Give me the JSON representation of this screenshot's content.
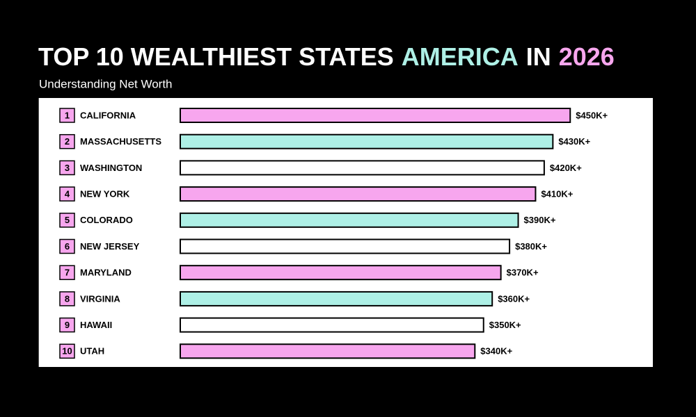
{
  "chart_data": {
    "type": "bar",
    "orientation": "horizontal",
    "title_parts": [
      {
        "text": "TOP 10 WEALTHIEST STATES",
        "color": "#ffffff"
      },
      {
        "text": "AMERICA",
        "color": "#aef0e6"
      },
      {
        "text": "IN",
        "color": "#ffffff"
      },
      {
        "text": "2026",
        "color": "#f7a6ee"
      }
    ],
    "subtitle": "Understanding Net Worth",
    "ranks": [
      1,
      2,
      3,
      4,
      5,
      6,
      7,
      8,
      9,
      10
    ],
    "categories": [
      "CALIFORNIA",
      "MASSACHUSETTS",
      "WASHINGTON",
      "NEW YORK",
      "COLORADO",
      "NEW JERSEY",
      "MARYLAND",
      "VIRGINIA",
      "HAWAII",
      "UTAH"
    ],
    "values": [
      450000,
      430000,
      420000,
      410000,
      390000,
      380000,
      370000,
      360000,
      350000,
      340000
    ],
    "value_labels": [
      "$450K+",
      "$430K+",
      "$420K+",
      "$410K+",
      "$390K+",
      "$380K+",
      "$370K+",
      "$360K+",
      "$350K+",
      "$340K+"
    ],
    "colors": [
      "#f7a6ee",
      "#aef0e6",
      "#ffffff",
      "#f7a6ee",
      "#aef0e6",
      "#ffffff",
      "#f7a6ee",
      "#aef0e6",
      "#ffffff",
      "#f7a6ee"
    ],
    "rank_color": "#f7a6ee"
  }
}
